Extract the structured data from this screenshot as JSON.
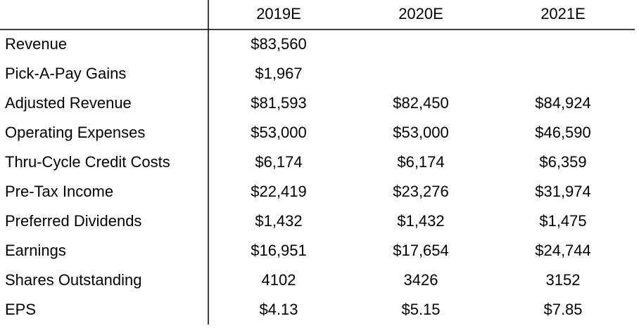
{
  "table": {
    "columns": [
      "2019E",
      "2020E",
      "2021E"
    ],
    "rows": [
      {
        "label": "Revenue",
        "values": [
          "$83,560",
          null,
          null
        ]
      },
      {
        "label": "Pick-A-Pay Gains",
        "values": [
          "$1,967",
          null,
          null
        ]
      },
      {
        "label": "Adjusted Revenue",
        "values": [
          "$81,593",
          "$82,450",
          "$84,924"
        ]
      },
      {
        "label": "Operating Expenses",
        "values": [
          "$53,000",
          "$53,000",
          "$46,590"
        ]
      },
      {
        "label": "Thru-Cycle Credit Costs",
        "values": [
          "$6,174",
          "$6,174",
          "$6,359"
        ]
      },
      {
        "label": "Pre-Tax Income",
        "values": [
          "$22,419",
          "$23,276",
          "$31,974"
        ]
      },
      {
        "label": "Preferred Dividends",
        "values": [
          "$1,432",
          "$1,432",
          "$1,475"
        ]
      },
      {
        "label": "Earnings",
        "values": [
          "$16,951",
          "$17,654",
          "$24,744"
        ]
      },
      {
        "label": "Shares Outstanding",
        "values": [
          "4102",
          "3426",
          "3152"
        ]
      },
      {
        "label": "EPS",
        "values": [
          "$4.13",
          "$5.15",
          "$7.85"
        ]
      }
    ]
  }
}
